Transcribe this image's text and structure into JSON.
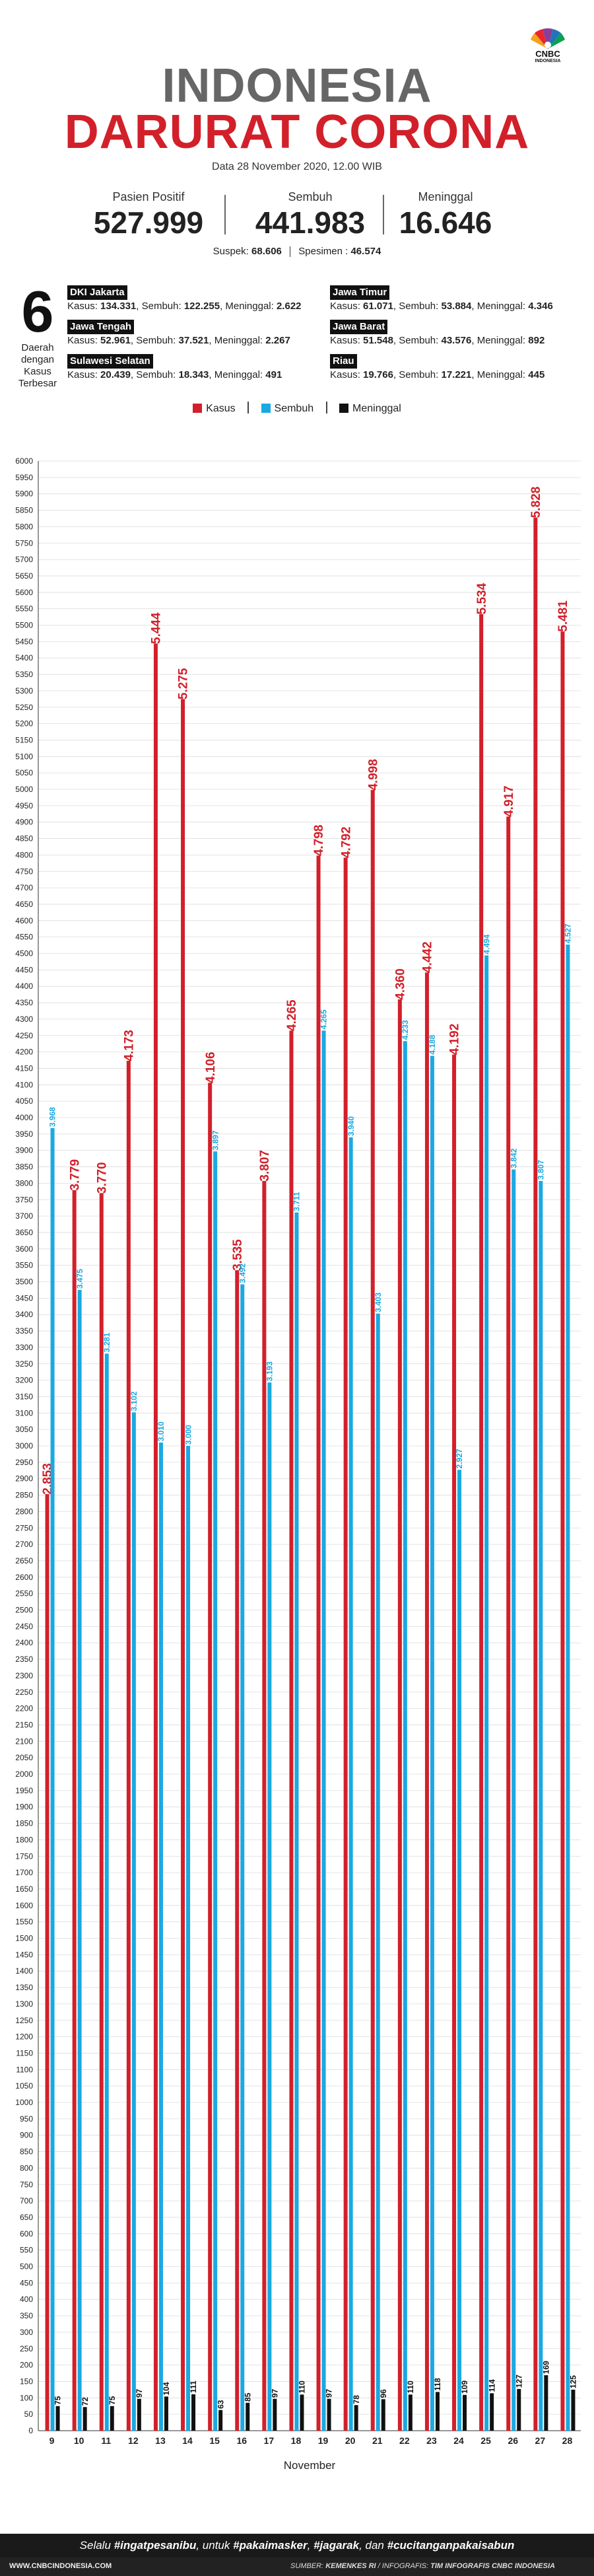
{
  "brand": {
    "logo_text": "CNBC",
    "logo_sub": "INDONESIA"
  },
  "title": {
    "line1": "INDONESIA",
    "line2": "DARURAT CORONA"
  },
  "date": "Data 28 November 2020, 12.00 WIB",
  "stats": [
    {
      "label": "Pasien Positif",
      "value": "527.999"
    },
    {
      "label": "Sembuh",
      "value": "441.983"
    },
    {
      "label": "Meninggal",
      "value": "16.646"
    }
  ],
  "suspek": {
    "label": "Suspek:",
    "value": "68.606",
    "label2": "Spesimen :",
    "value2": "46.574"
  },
  "top_regions": {
    "count": "6",
    "caption": "Daerah dengan Kasus Terbesar",
    "items": [
      {
        "name": "DKI Jakarta",
        "kasus": "134.331",
        "sembuh": "122.255",
        "meninggal": "2.622"
      },
      {
        "name": "Jawa Timur",
        "kasus": "61.071",
        "sembuh": "53.884",
        "meninggal": "4.346"
      },
      {
        "name": "Jawa Tengah",
        "kasus": "52.961",
        "sembuh": "37.521",
        "meninggal": "2.267"
      },
      {
        "name": "Jawa Barat",
        "kasus": "51.548",
        "sembuh": "43.576",
        "meninggal": "892"
      },
      {
        "name": "Sulawesi Selatan",
        "kasus": "20.439",
        "sembuh": "18.343",
        "meninggal": "491"
      },
      {
        "name": "Riau",
        "kasus": "19.766",
        "sembuh": "17.221",
        "meninggal": "445"
      }
    ],
    "labels": {
      "kasus": "Kasus:",
      "sembuh": "Sembuh:",
      "meninggal": "Meninggal:"
    }
  },
  "legend": {
    "kasus": "Kasus",
    "sembuh": "Sembuh",
    "meninggal": "Meninggal"
  },
  "colors": {
    "kasus": "#d2202a",
    "sembuh": "#1ba9e1",
    "meninggal": "#111111",
    "title_gray": "#666666"
  },
  "chart_data": {
    "type": "bar",
    "categories": [
      "9",
      "10",
      "11",
      "12",
      "13",
      "14",
      "15",
      "16",
      "17",
      "18",
      "19",
      "20",
      "21",
      "22",
      "23",
      "24",
      "25",
      "26",
      "27",
      "28"
    ],
    "xlabel": "November",
    "ylabel": "",
    "ylim": [
      0,
      6000
    ],
    "ytick_step": 50,
    "series": [
      {
        "name": "Kasus",
        "values": [
          2853,
          3779,
          3770,
          4173,
          5444,
          5275,
          4106,
          3535,
          3807,
          4265,
          4798,
          4792,
          4998,
          4360,
          4442,
          4192,
          5534,
          4917,
          5828,
          5481
        ],
        "labels": [
          "2.853",
          "3.779",
          "3.770",
          "4.173",
          "5.444",
          "5.275",
          "4.106",
          "3.535",
          "3.807",
          "4.265",
          "4.798",
          "4.792",
          "4.998",
          "4.360",
          "4.442",
          "4.192",
          "5.534",
          "4.917",
          "5.828",
          "5.481"
        ]
      },
      {
        "name": "Sembuh",
        "values": [
          3968,
          3475,
          3281,
          3102,
          3010,
          3000,
          3897,
          3492,
          3193,
          3711,
          4265,
          3940,
          3403,
          4233,
          4188,
          2927,
          4494,
          3842,
          3807,
          4527
        ],
        "labels": [
          "3.968",
          "3.475",
          "3.281",
          "3.102",
          "3.010",
          "3.000",
          "3.897",
          "3.492",
          "3.193",
          "3.711",
          "4.265",
          "3.940",
          "3.403",
          "4.233",
          "4.188",
          "2.927",
          "4.494",
          "3.842",
          "3.807",
          "4.527"
        ]
      },
      {
        "name": "Meninggal",
        "values": [
          75,
          72,
          75,
          97,
          104,
          111,
          63,
          85,
          97,
          110,
          97,
          78,
          96,
          110,
          118,
          109,
          114,
          127,
          169,
          125
        ],
        "labels": [
          "75",
          "72",
          "75",
          "97",
          "104",
          "111",
          "63",
          "85",
          "97",
          "110",
          "97",
          "78",
          "96",
          "110",
          "118",
          "109",
          "114",
          "127",
          "169",
          "125"
        ]
      }
    ]
  },
  "footer": {
    "tagline_pre": "Selalu",
    "tag1": "#ingatpesanibu",
    "tagline_mid": ", untuk",
    "tag2": "#pakaimasker",
    "tag3": "#jagarak",
    "tagline_and": ", dan",
    "tag4": "#cucitanganpakaisabun",
    "website": "WWW.CNBCINDONESIA.COM",
    "source_label": "SUMBER:",
    "source": "KEMENKES RI",
    "credit_label": "INFOGRAFIS:",
    "credit": "TIM INFOGRAFIS CNBC INDONESIA"
  }
}
